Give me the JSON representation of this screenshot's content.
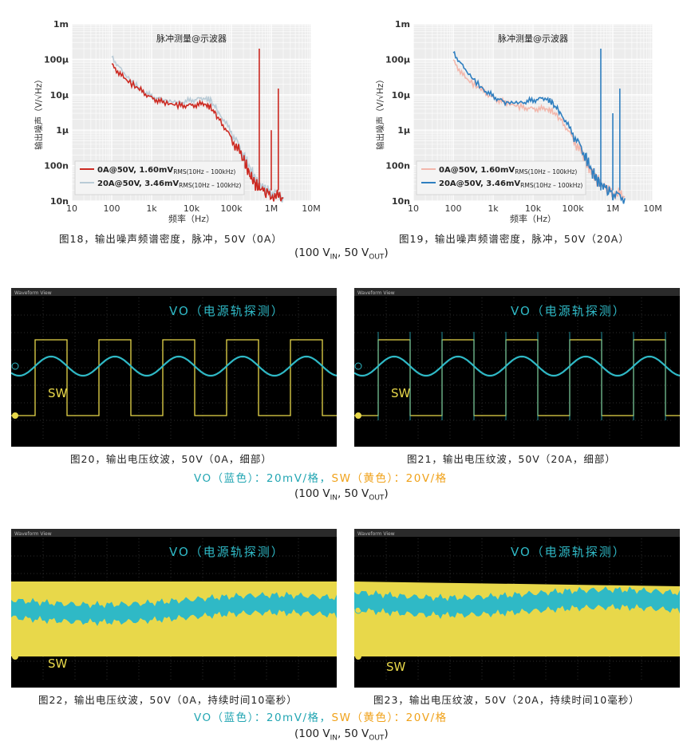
{
  "noise_plots": {
    "left": {
      "inner_title": "脉冲测量@示波器",
      "ylabel": "输出噪声（V/√Hz）",
      "xlabel": "频率（Hz）",
      "legend": [
        {
          "label": "0A@50V, 1.60mV",
          "sub": "RMS(10Hz – 100kHz)",
          "color": "#cc2a22"
        },
        {
          "label": "20A@50V, 3.46mV",
          "sub": "RMS(10Hz – 100kHz)",
          "color": "#b9cbd6"
        }
      ],
      "caption": "图18，输出噪声频谱密度，脉冲，50V（0A）"
    },
    "right": {
      "inner_title": "脉冲测量@示波器",
      "ylabel": "输出噪声（V/√Hz）",
      "xlabel": "频率（Hz）",
      "legend": [
        {
          "label": "0A@50V, 1.60mV",
          "sub": "RMS(10Hz – 100kHz)",
          "color": "#f2b7ac"
        },
        {
          "label": "20A@50V, 3.46mV",
          "sub": "RMS(10Hz – 100kHz)",
          "color": "#2f7fc0"
        }
      ],
      "caption": "图19，输出噪声频谱密度，脉冲，50V（20A）"
    },
    "condition_text": "(100 V",
    "condition_in": "IN",
    "condition_mid": ", 50 V",
    "condition_out": "OUT",
    "condition_end": ")"
  },
  "chart_data": [
    {
      "type": "line",
      "title": "脉冲测量@示波器",
      "xlabel": "频率（Hz）",
      "ylabel": "输出噪声（V/√Hz）",
      "xscale": "log",
      "yscale": "log",
      "xlim": [
        10,
        10000000
      ],
      "ylim": [
        1e-08,
        0.001
      ],
      "x_tick_labels": [
        "10",
        "100",
        "1k",
        "10k",
        "100k",
        "1M",
        "10M"
      ],
      "y_tick_labels": [
        "10n",
        "100n",
        "1μ",
        "10μ",
        "100μ",
        "1m"
      ],
      "series": [
        {
          "name": "0A@50V, 1.60mV RMS(10Hz – 100kHz)",
          "color": "#cc2a22",
          "x": [
            100,
            200,
            500,
            1000,
            2000,
            5000,
            10000,
            20000,
            30000,
            50000,
            100000,
            200000,
            300000,
            400000,
            600000,
            1000000,
            2000000
          ],
          "y": [
            7e-05,
            3e-05,
            1.4e-05,
            8e-06,
            6e-06,
            5e-06,
            5e-06,
            5.5e-06,
            4.5e-06,
            2e-06,
            6e-07,
            1.5e-07,
            5e-08,
            3e-08,
            2e-08,
            1.5e-08,
            1.2e-08
          ]
        },
        {
          "name": "20A@50V, 3.46mV RMS(10Hz – 100kHz)",
          "color": "#b9cbd6",
          "x": [
            100,
            200,
            500,
            1000,
            2000,
            5000,
            10000,
            20000,
            30000,
            50000,
            100000,
            200000,
            300000,
            400000,
            600000,
            1000000,
            2000000
          ],
          "y": [
            0.00012,
            4e-05,
            1.5e-05,
            9e-06,
            7e-06,
            6e-06,
            7e-06,
            8e-06,
            7e-06,
            3e-06,
            9e-07,
            2e-07,
            8e-08,
            4e-08,
            2.5e-08,
            1.8e-08,
            1.3e-08
          ]
        }
      ],
      "spikes": [
        {
          "x": 500000,
          "y": 0.0002
        },
        {
          "x": 1000000,
          "y": 1e-06
        },
        {
          "x": 1500000,
          "y": 1.5e-05
        }
      ]
    },
    {
      "type": "line",
      "title": "脉冲测量@示波器",
      "xlabel": "频率（Hz）",
      "ylabel": "输出噪声（V/√Hz）",
      "xscale": "log",
      "yscale": "log",
      "xlim": [
        10,
        10000000
      ],
      "ylim": [
        1e-08,
        0.001
      ],
      "x_tick_labels": [
        "10",
        "100",
        "1k",
        "10k",
        "100k",
        "1M",
        "10M"
      ],
      "y_tick_labels": [
        "10n",
        "100n",
        "1μ",
        "10μ",
        "100μ",
        "1m"
      ],
      "series": [
        {
          "name": "0A@50V, 1.60mV RMS(10Hz – 100kHz)",
          "color": "#f2b7ac",
          "x": [
            100,
            200,
            500,
            1000,
            2000,
            5000,
            10000,
            20000,
            30000,
            50000,
            100000,
            200000,
            300000,
            400000,
            600000,
            1000000,
            2000000
          ],
          "y": [
            9e-05,
            3e-05,
            1.4e-05,
            8e-06,
            6e-06,
            4.5e-06,
            4e-06,
            4e-06,
            3.5e-06,
            2e-06,
            6e-07,
            1.5e-07,
            6e-08,
            4e-08,
            2.5e-08,
            1.8e-08,
            1.3e-08
          ]
        },
        {
          "name": "20A@50V, 3.46mV RMS(10Hz – 100kHz)",
          "color": "#2f7fc0",
          "x": [
            100,
            200,
            500,
            1000,
            2000,
            5000,
            10000,
            20000,
            30000,
            50000,
            100000,
            200000,
            300000,
            400000,
            600000,
            1000000,
            2000000
          ],
          "y": [
            0.00016,
            5e-05,
            1.6e-05,
            9e-06,
            6e-06,
            6e-06,
            7e-06,
            8e-06,
            6e-06,
            3e-06,
            8e-07,
            2e-07,
            7e-08,
            4e-08,
            2.5e-08,
            1.6e-08,
            1.2e-08
          ]
        }
      ],
      "spikes": [
        {
          "x": 500000,
          "y": 0.0002
        },
        {
          "x": 1000000,
          "y": 3e-06
        },
        {
          "x": 1500000,
          "y": 1.5e-05
        }
      ]
    }
  ],
  "scopes": {
    "header_text": "Waveform View",
    "vo_label": "VO（电源轨探测）",
    "sw_label": "SW",
    "fig20_caption": "图20，输出电压纹波，50V（0A，细部）",
    "fig21_caption": "图21，输出电压纹波，50V（20A，细部）",
    "fig22_caption": "图22，输出电压纹波，50V（0A，持续时间10毫秒）",
    "fig23_caption": "图23，输出电压纹波，50V（20A，持续时间10毫秒）",
    "legend_vo": "VO（蓝色）：20mV/格，",
    "legend_sw": "SW（黄色）：20V/格",
    "vo_color": "#2fb9c6",
    "sw_color": "#e8d84a"
  }
}
